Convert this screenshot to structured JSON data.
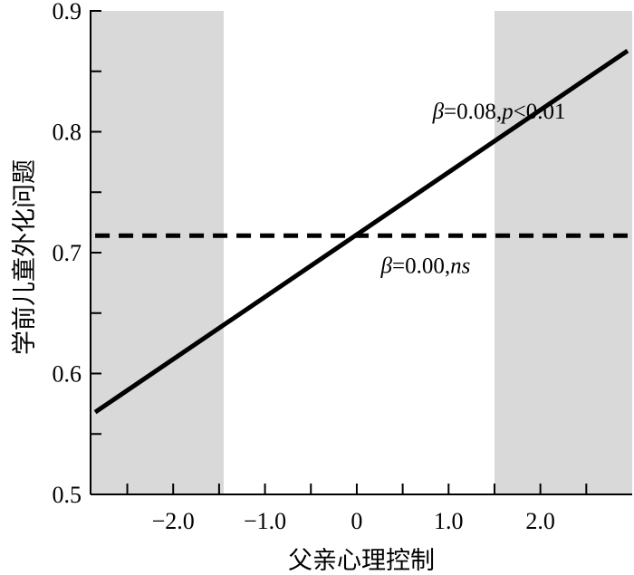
{
  "chart_data": {
    "type": "line",
    "xlabel": "父亲心理控制",
    "ylabel": "学前儿童外化问题",
    "xlim": [
      -2.9,
      3.0
    ],
    "ylim": [
      0.5,
      0.9
    ],
    "x_ticks": [
      -2.0,
      -1.0,
      0,
      1.0,
      2.0
    ],
    "x_tick_labels": [
      "−2.0",
      "−1.0",
      "0",
      "1.0",
      "2.0"
    ],
    "y_ticks": [
      0.5,
      0.6,
      0.7,
      0.8,
      0.9
    ],
    "y_tick_labels": [
      "0.5",
      "0.6",
      "0.7",
      "0.8",
      "0.9"
    ],
    "shaded_regions": [
      {
        "x_start": -2.9,
        "x_end": -1.45
      },
      {
        "x_start": 1.5,
        "x_end": 3.0
      }
    ],
    "shade_color": "#d9d9d9",
    "series": [
      {
        "style": "solid",
        "x": [
          -2.85,
          2.95
        ],
        "y": [
          0.568,
          0.867
        ]
      },
      {
        "style": "dashed",
        "x": [
          -2.85,
          2.95
        ],
        "y": [
          0.714,
          0.714
        ]
      }
    ],
    "annotations": [
      {
        "beta_symbol": "β",
        "text": "=0.08,",
        "p_symbol": "p",
        "text2": "<0.01",
        "x": 1.55,
        "y": 0.811,
        "anchor": "middle"
      },
      {
        "beta_symbol": "β",
        "text": "=0.00,",
        "ns": "ns",
        "x": 0.75,
        "y": 0.683,
        "anchor": "middle"
      }
    ],
    "grid": false
  }
}
